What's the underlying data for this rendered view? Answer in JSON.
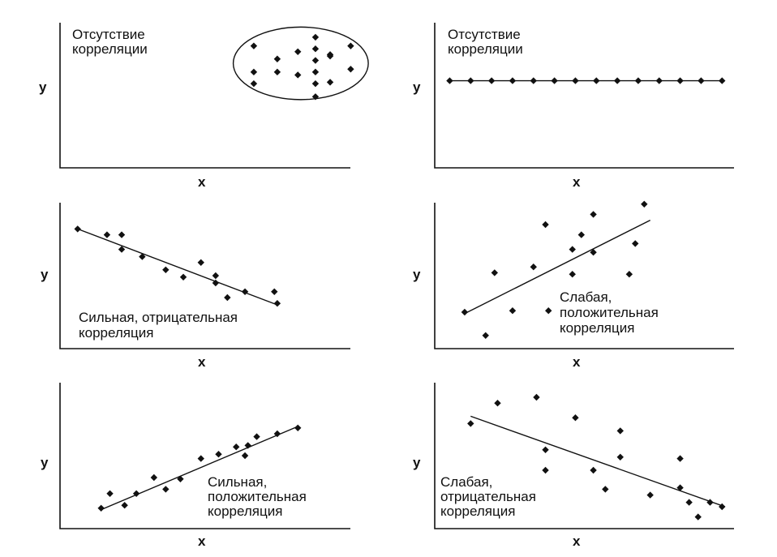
{
  "chart_data": [
    {
      "type": "scatter",
      "label_lines": [
        "Отсутствие",
        "корреляции"
      ],
      "xlabel": "x",
      "ylabel": "y",
      "xlim": [
        0,
        100
      ],
      "ylim": [
        0,
        100
      ],
      "points": [
        {
          "x": 66,
          "y": 84
        },
        {
          "x": 66,
          "y": 66
        },
        {
          "x": 66,
          "y": 58
        },
        {
          "x": 74,
          "y": 75
        },
        {
          "x": 74,
          "y": 66
        },
        {
          "x": 81,
          "y": 80
        },
        {
          "x": 81,
          "y": 64
        },
        {
          "x": 87,
          "y": 90
        },
        {
          "x": 87,
          "y": 82
        },
        {
          "x": 87,
          "y": 74
        },
        {
          "x": 87,
          "y": 66
        },
        {
          "x": 87,
          "y": 58
        },
        {
          "x": 87,
          "y": 49
        },
        {
          "x": 92,
          "y": 77
        },
        {
          "x": 92,
          "y": 59
        },
        {
          "x": 92,
          "y": 78
        },
        {
          "x": 99,
          "y": 84
        },
        {
          "x": 99,
          "y": 68
        }
      ],
      "ellipse": {
        "cx": 82,
        "cy": 72,
        "rx": 23,
        "ry": 25
      }
    },
    {
      "type": "scatter",
      "label_lines": [
        "Отсутствие",
        "корреляции"
      ],
      "xlabel": "x",
      "ylabel": "y",
      "xlim": [
        0,
        100
      ],
      "ylim": [
        0,
        100
      ],
      "points": [
        {
          "x": 5,
          "y": 60
        },
        {
          "x": 12,
          "y": 60
        },
        {
          "x": 19,
          "y": 60
        },
        {
          "x": 26,
          "y": 60
        },
        {
          "x": 33,
          "y": 60
        },
        {
          "x": 40,
          "y": 60
        },
        {
          "x": 47,
          "y": 60
        },
        {
          "x": 54,
          "y": 60
        },
        {
          "x": 61,
          "y": 60
        },
        {
          "x": 68,
          "y": 60
        },
        {
          "x": 75,
          "y": 60
        },
        {
          "x": 82,
          "y": 60
        },
        {
          "x": 89,
          "y": 60
        },
        {
          "x": 96,
          "y": 60
        }
      ],
      "trend": [
        {
          "x": 5,
          "y": 60
        },
        {
          "x": 96,
          "y": 60
        }
      ]
    },
    {
      "type": "scatter",
      "label_lines": [
        "Сильная, отрицательная",
        "корреляция"
      ],
      "xlabel": "x",
      "ylabel": "y",
      "xlim": [
        0,
        100
      ],
      "ylim": [
        0,
        100
      ],
      "points": [
        {
          "x": 6,
          "y": 82
        },
        {
          "x": 16,
          "y": 78
        },
        {
          "x": 21,
          "y": 78
        },
        {
          "x": 21,
          "y": 68
        },
        {
          "x": 28,
          "y": 63
        },
        {
          "x": 36,
          "y": 54
        },
        {
          "x": 42,
          "y": 49
        },
        {
          "x": 48,
          "y": 59
        },
        {
          "x": 53,
          "y": 50
        },
        {
          "x": 53,
          "y": 45
        },
        {
          "x": 57,
          "y": 35
        },
        {
          "x": 63,
          "y": 39
        },
        {
          "x": 73,
          "y": 39
        },
        {
          "x": 74,
          "y": 31
        }
      ],
      "trend": [
        {
          "x": 6,
          "y": 82
        },
        {
          "x": 74,
          "y": 30
        }
      ]
    },
    {
      "type": "scatter",
      "label_lines": [
        "Слабая,",
        "положительная",
        "корреляция"
      ],
      "xlabel": "x",
      "ylabel": "y",
      "xlim": [
        0,
        100
      ],
      "ylim": [
        0,
        100
      ],
      "points": [
        {
          "x": 10,
          "y": 25
        },
        {
          "x": 17,
          "y": 9
        },
        {
          "x": 20,
          "y": 52
        },
        {
          "x": 26,
          "y": 26
        },
        {
          "x": 33,
          "y": 56
        },
        {
          "x": 37,
          "y": 85
        },
        {
          "x": 38,
          "y": 26
        },
        {
          "x": 46,
          "y": 68
        },
        {
          "x": 46,
          "y": 51
        },
        {
          "x": 49,
          "y": 78
        },
        {
          "x": 53,
          "y": 66
        },
        {
          "x": 53,
          "y": 92
        },
        {
          "x": 65,
          "y": 51
        },
        {
          "x": 67,
          "y": 72
        },
        {
          "x": 70,
          "y": 99
        }
      ],
      "trend": [
        {
          "x": 10,
          "y": 24
        },
        {
          "x": 72,
          "y": 88
        }
      ]
    },
    {
      "type": "scatter",
      "label_lines": [
        "Сильная,",
        "положительная",
        "корреляция"
      ],
      "xlabel": "x",
      "ylabel": "y",
      "xlim": [
        0,
        100
      ],
      "ylim": [
        0,
        100
      ],
      "points": [
        {
          "x": 14,
          "y": 14
        },
        {
          "x": 17,
          "y": 24
        },
        {
          "x": 22,
          "y": 16
        },
        {
          "x": 26,
          "y": 24
        },
        {
          "x": 32,
          "y": 35
        },
        {
          "x": 36,
          "y": 27
        },
        {
          "x": 41,
          "y": 34
        },
        {
          "x": 48,
          "y": 48
        },
        {
          "x": 54,
          "y": 51
        },
        {
          "x": 60,
          "y": 56
        },
        {
          "x": 63,
          "y": 50
        },
        {
          "x": 64,
          "y": 57
        },
        {
          "x": 67,
          "y": 63
        },
        {
          "x": 74,
          "y": 65
        },
        {
          "x": 81,
          "y": 69
        }
      ],
      "trend": [
        {
          "x": 14,
          "y": 13
        },
        {
          "x": 81,
          "y": 70
        }
      ]
    },
    {
      "type": "scatter",
      "label_lines": [
        "Слабая,",
        "отрицательная",
        "корреляция"
      ],
      "xlabel": "x",
      "ylabel": "y",
      "xlim": [
        0,
        100
      ],
      "ylim": [
        0,
        100
      ],
      "points": [
        {
          "x": 12,
          "y": 72
        },
        {
          "x": 21,
          "y": 86
        },
        {
          "x": 34,
          "y": 90
        },
        {
          "x": 37,
          "y": 54
        },
        {
          "x": 37,
          "y": 40
        },
        {
          "x": 47,
          "y": 76
        },
        {
          "x": 53,
          "y": 40
        },
        {
          "x": 57,
          "y": 27
        },
        {
          "x": 62,
          "y": 67
        },
        {
          "x": 62,
          "y": 49
        },
        {
          "x": 72,
          "y": 23
        },
        {
          "x": 82,
          "y": 48
        },
        {
          "x": 82,
          "y": 28
        },
        {
          "x": 85,
          "y": 18
        },
        {
          "x": 88,
          "y": 8
        },
        {
          "x": 92,
          "y": 18
        },
        {
          "x": 96,
          "y": 15
        }
      ],
      "trend": [
        {
          "x": 12,
          "y": 77
        },
        {
          "x": 97,
          "y": 15
        }
      ]
    }
  ]
}
